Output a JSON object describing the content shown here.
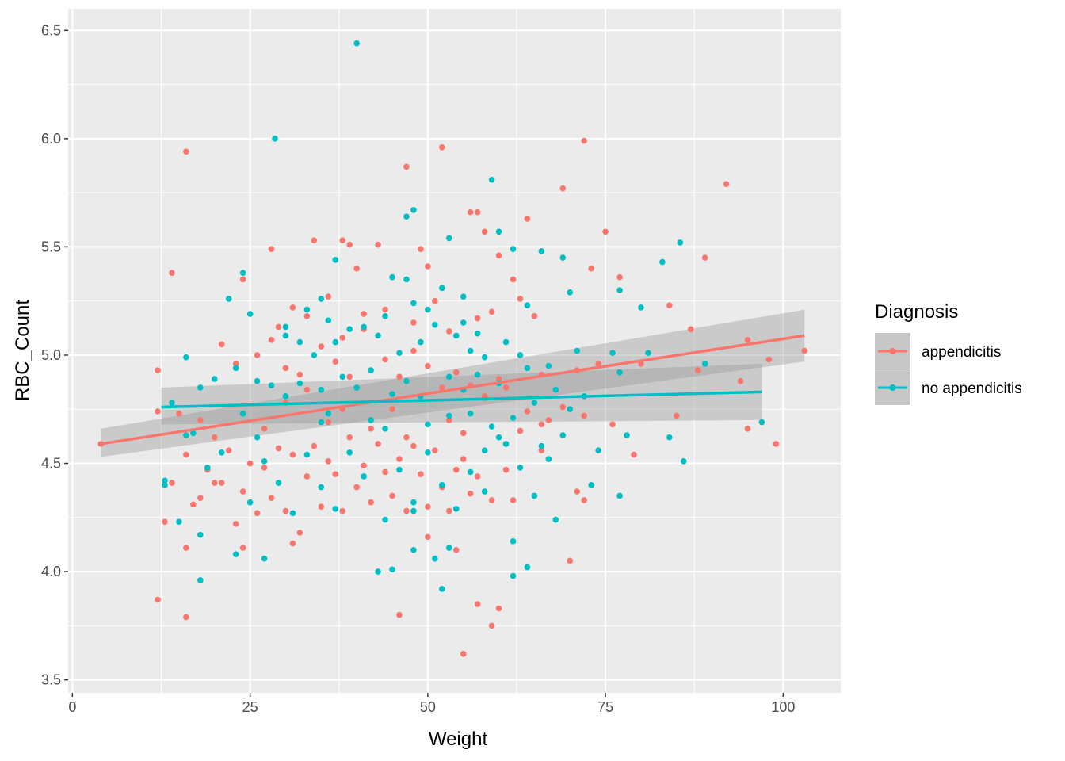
{
  "chart_data": {
    "type": "scatter",
    "title": "",
    "xlabel": "Weight",
    "ylabel": "RBC_Count",
    "xlim": [
      -0.6,
      108.1
    ],
    "ylim": [
      3.44,
      6.6
    ],
    "xticks": [
      0,
      25,
      50,
      75,
      100
    ],
    "yticks": [
      3.5,
      4.0,
      4.5,
      5.0,
      5.5,
      6.0,
      6.5
    ],
    "xtick_labels": [
      "0",
      "25",
      "50",
      "75",
      "100"
    ],
    "ytick_labels": [
      "3.5",
      "4.0",
      "4.5",
      "5.0",
      "5.5",
      "6.0",
      "6.5"
    ],
    "grid": true,
    "legend": {
      "title": "Diagnosis",
      "position": "right"
    },
    "series": [
      {
        "name": "appendicitis",
        "color": "#F8766D",
        "fit": {
          "x": [
            4,
            103
          ],
          "y": [
            4.59,
            5.09
          ],
          "ci_low": [
            4.53,
            4.97
          ],
          "ci_high": [
            4.66,
            5.21
          ]
        },
        "points": [
          [
            16,
            5.94
          ],
          [
            28,
            5.49
          ],
          [
            34,
            5.53
          ],
          [
            38,
            5.53
          ],
          [
            47,
            5.87
          ],
          [
            52,
            5.96
          ],
          [
            72,
            5.99
          ],
          [
            92,
            5.79
          ],
          [
            69,
            5.77
          ],
          [
            56,
            5.66
          ],
          [
            57,
            5.66
          ],
          [
            64,
            5.63
          ],
          [
            58,
            5.57
          ],
          [
            75,
            5.57
          ],
          [
            60,
            5.46
          ],
          [
            89,
            5.45
          ],
          [
            39,
            5.51
          ],
          [
            43,
            5.51
          ],
          [
            49,
            5.49
          ],
          [
            14,
            5.38
          ],
          [
            24,
            5.35
          ],
          [
            40,
            5.4
          ],
          [
            50,
            5.41
          ],
          [
            62,
            5.35
          ],
          [
            73,
            5.4
          ],
          [
            77,
            5.36
          ],
          [
            84,
            5.23
          ],
          [
            87,
            5.12
          ],
          [
            95,
            5.07
          ],
          [
            103,
            5.02
          ],
          [
            98,
            4.98
          ],
          [
            88,
            4.93
          ],
          [
            80,
            4.96
          ],
          [
            74,
            4.96
          ],
          [
            71,
            4.93
          ],
          [
            66,
            4.91
          ],
          [
            60,
            4.89
          ],
          [
            94,
            4.88
          ],
          [
            12,
            4.93
          ],
          [
            15,
            4.73
          ],
          [
            18,
            4.7
          ],
          [
            21,
            5.05
          ],
          [
            23,
            4.96
          ],
          [
            26,
            5.0
          ],
          [
            28,
            5.07
          ],
          [
            30,
            4.94
          ],
          [
            32,
            4.91
          ],
          [
            35,
            5.04
          ],
          [
            37,
            4.97
          ],
          [
            39,
            4.9
          ],
          [
            41,
            5.12
          ],
          [
            44,
            4.98
          ],
          [
            46,
            4.9
          ],
          [
            48,
            5.02
          ],
          [
            50,
            4.95
          ],
          [
            52,
            4.85
          ],
          [
            54,
            4.92
          ],
          [
            56,
            4.86
          ],
          [
            58,
            4.81
          ],
          [
            61,
            4.85
          ],
          [
            64,
            4.74
          ],
          [
            67,
            4.7
          ],
          [
            69,
            4.76
          ],
          [
            72,
            4.72
          ],
          [
            76,
            4.68
          ],
          [
            79,
            4.54
          ],
          [
            85,
            4.72
          ],
          [
            95,
            4.66
          ],
          [
            99,
            4.59
          ],
          [
            4,
            4.59
          ],
          [
            12,
            4.74
          ],
          [
            13,
            4.23
          ],
          [
            14,
            4.41
          ],
          [
            16,
            4.54
          ],
          [
            17,
            4.31
          ],
          [
            18,
            4.34
          ],
          [
            19,
            4.47
          ],
          [
            20,
            4.62
          ],
          [
            21,
            4.41
          ],
          [
            22,
            4.56
          ],
          [
            23,
            4.22
          ],
          [
            24,
            4.37
          ],
          [
            25,
            4.5
          ],
          [
            26,
            4.27
          ],
          [
            27,
            4.48
          ],
          [
            28,
            4.34
          ],
          [
            29,
            4.57
          ],
          [
            30,
            4.28
          ],
          [
            31,
            4.54
          ],
          [
            32,
            4.18
          ],
          [
            33,
            4.44
          ],
          [
            34,
            4.58
          ],
          [
            35,
            4.3
          ],
          [
            36,
            4.51
          ],
          [
            37,
            4.45
          ],
          [
            38,
            4.28
          ],
          [
            39,
            4.62
          ],
          [
            40,
            4.39
          ],
          [
            41,
            4.49
          ],
          [
            42,
            4.32
          ],
          [
            43,
            4.59
          ],
          [
            44,
            4.46
          ],
          [
            45,
            4.35
          ],
          [
            46,
            4.52
          ],
          [
            47,
            4.28
          ],
          [
            48,
            4.58
          ],
          [
            49,
            4.45
          ],
          [
            50,
            4.3
          ],
          [
            51,
            4.56
          ],
          [
            52,
            4.39
          ],
          [
            53,
            4.28
          ],
          [
            54,
            4.47
          ],
          [
            55,
            4.52
          ],
          [
            56,
            4.36
          ],
          [
            57,
            4.44
          ],
          [
            59,
            4.33
          ],
          [
            61,
            4.47
          ],
          [
            62,
            4.33
          ],
          [
            66,
            4.56
          ],
          [
            71,
            4.37
          ],
          [
            72,
            4.33
          ],
          [
            12,
            3.87
          ],
          [
            16,
            3.79
          ],
          [
            46,
            3.8
          ],
          [
            55,
            3.62
          ],
          [
            57,
            3.85
          ],
          [
            59,
            3.75
          ],
          [
            60,
            3.83
          ],
          [
            70,
            4.05
          ],
          [
            50,
            4.16
          ],
          [
            54,
            4.1
          ],
          [
            31,
            4.13
          ],
          [
            24,
            4.11
          ],
          [
            16,
            4.11
          ],
          [
            20,
            4.41
          ],
          [
            27,
            4.66
          ],
          [
            30,
            4.78
          ],
          [
            33,
            4.84
          ],
          [
            36,
            4.69
          ],
          [
            38,
            4.75
          ],
          [
            42,
            4.66
          ],
          [
            45,
            4.75
          ],
          [
            47,
            4.62
          ],
          [
            53,
            4.7
          ],
          [
            55,
            4.64
          ],
          [
            58,
            4.8
          ],
          [
            63,
            4.65
          ],
          [
            66,
            4.68
          ],
          [
            29,
            5.13
          ],
          [
            31,
            5.22
          ],
          [
            33,
            5.18
          ],
          [
            36,
            5.27
          ],
          [
            38,
            5.08
          ],
          [
            41,
            5.19
          ],
          [
            44,
            5.21
          ],
          [
            48,
            5.15
          ],
          [
            51,
            5.25
          ],
          [
            53,
            5.11
          ],
          [
            57,
            5.17
          ],
          [
            59,
            5.2
          ],
          [
            63,
            5.26
          ],
          [
            65,
            5.18
          ]
        ]
      },
      {
        "name": "no appendicitis",
        "color": "#00BFC4",
        "fit": {
          "x": [
            12.5,
            97
          ],
          "y": [
            4.76,
            4.83
          ],
          "ci_low": [
            4.68,
            4.7
          ],
          "ci_high": [
            4.85,
            4.96
          ]
        },
        "points": [
          [
            40,
            6.44
          ],
          [
            28.5,
            6.0
          ],
          [
            59,
            5.81
          ],
          [
            48,
            5.67
          ],
          [
            47,
            5.64
          ],
          [
            53,
            5.54
          ],
          [
            60,
            5.57
          ],
          [
            85.5,
            5.52
          ],
          [
            62,
            5.49
          ],
          [
            66,
            5.48
          ],
          [
            69,
            5.45
          ],
          [
            83,
            5.43
          ],
          [
            37,
            5.44
          ],
          [
            24,
            5.38
          ],
          [
            22,
            5.26
          ],
          [
            35,
            5.26
          ],
          [
            45,
            5.36
          ],
          [
            47,
            5.35
          ],
          [
            52,
            5.31
          ],
          [
            55,
            5.27
          ],
          [
            64,
            5.23
          ],
          [
            70,
            5.29
          ],
          [
            77,
            5.3
          ],
          [
            80,
            5.22
          ],
          [
            25,
            5.19
          ],
          [
            30,
            5.13
          ],
          [
            33,
            5.21
          ],
          [
            36,
            5.16
          ],
          [
            41,
            5.13
          ],
          [
            43,
            5.09
          ],
          [
            46,
            5.01
          ],
          [
            49,
            5.06
          ],
          [
            51,
            5.14
          ],
          [
            54,
            5.09
          ],
          [
            56,
            5.02
          ],
          [
            58,
            4.99
          ],
          [
            61,
            5.06
          ],
          [
            63,
            5.0
          ],
          [
            67,
            4.95
          ],
          [
            71,
            5.02
          ],
          [
            76,
            5.01
          ],
          [
            81,
            5.01
          ],
          [
            89,
            4.96
          ],
          [
            16,
            4.99
          ],
          [
            18,
            4.85
          ],
          [
            20,
            4.89
          ],
          [
            23,
            4.94
          ],
          [
            26,
            4.88
          ],
          [
            28,
            4.86
          ],
          [
            30,
            4.81
          ],
          [
            32,
            4.87
          ],
          [
            35,
            4.84
          ],
          [
            38,
            4.9
          ],
          [
            40,
            4.85
          ],
          [
            42,
            4.93
          ],
          [
            45,
            4.82
          ],
          [
            47,
            4.88
          ],
          [
            49,
            4.81
          ],
          [
            53,
            4.9
          ],
          [
            55,
            4.84
          ],
          [
            57,
            4.91
          ],
          [
            60,
            4.87
          ],
          [
            64,
            4.94
          ],
          [
            68,
            4.84
          ],
          [
            72,
            4.81
          ],
          [
            77,
            4.92
          ],
          [
            13,
            4.42
          ],
          [
            15,
            4.23
          ],
          [
            17,
            4.64
          ],
          [
            18,
            4.17
          ],
          [
            19,
            4.48
          ],
          [
            21,
            4.55
          ],
          [
            23,
            4.08
          ],
          [
            25,
            4.32
          ],
          [
            27,
            4.51
          ],
          [
            29,
            4.41
          ],
          [
            31,
            4.27
          ],
          [
            33,
            4.54
          ],
          [
            35,
            4.39
          ],
          [
            37,
            4.29
          ],
          [
            39,
            4.55
          ],
          [
            41,
            4.44
          ],
          [
            44,
            4.24
          ],
          [
            46,
            4.47
          ],
          [
            48,
            4.32
          ],
          [
            50,
            4.55
          ],
          [
            52,
            4.4
          ],
          [
            54,
            4.29
          ],
          [
            56,
            4.46
          ],
          [
            58,
            4.37
          ],
          [
            61,
            4.59
          ],
          [
            63,
            4.48
          ],
          [
            65,
            4.35
          ],
          [
            67,
            4.52
          ],
          [
            69,
            4.63
          ],
          [
            74,
            4.56
          ],
          [
            78,
            4.63
          ],
          [
            84,
            4.62
          ],
          [
            86,
            4.51
          ],
          [
            27,
            4.06
          ],
          [
            18,
            3.96
          ],
          [
            43,
            4.0
          ],
          [
            45,
            4.01
          ],
          [
            48,
            4.1
          ],
          [
            51,
            4.06
          ],
          [
            52,
            3.92
          ],
          [
            53,
            4.11
          ],
          [
            62,
            3.98
          ],
          [
            64,
            4.02
          ],
          [
            68,
            4.24
          ],
          [
            73,
            4.4
          ],
          [
            77,
            4.35
          ],
          [
            97,
            4.69
          ],
          [
            62,
            4.14
          ],
          [
            48,
            4.28
          ],
          [
            35,
            4.69
          ],
          [
            36,
            4.73
          ],
          [
            42,
            4.7
          ],
          [
            44,
            4.66
          ],
          [
            50,
            4.68
          ],
          [
            53,
            4.72
          ],
          [
            56,
            4.73
          ],
          [
            59,
            4.67
          ],
          [
            62,
            4.71
          ],
          [
            65,
            4.78
          ],
          [
            70,
            4.75
          ],
          [
            30,
            5.09
          ],
          [
            32,
            5.06
          ],
          [
            34,
            5.0
          ],
          [
            37,
            5.06
          ],
          [
            39,
            5.12
          ],
          [
            44,
            5.18
          ],
          [
            48,
            5.24
          ],
          [
            50,
            5.21
          ],
          [
            55,
            5.15
          ],
          [
            57,
            5.1
          ],
          [
            13,
            4.4
          ],
          [
            14,
            4.78
          ],
          [
            16,
            4.63
          ],
          [
            24,
            4.73
          ],
          [
            26,
            4.62
          ],
          [
            58,
            4.56
          ],
          [
            60,
            4.62
          ],
          [
            66,
            4.58
          ]
        ]
      }
    ]
  }
}
